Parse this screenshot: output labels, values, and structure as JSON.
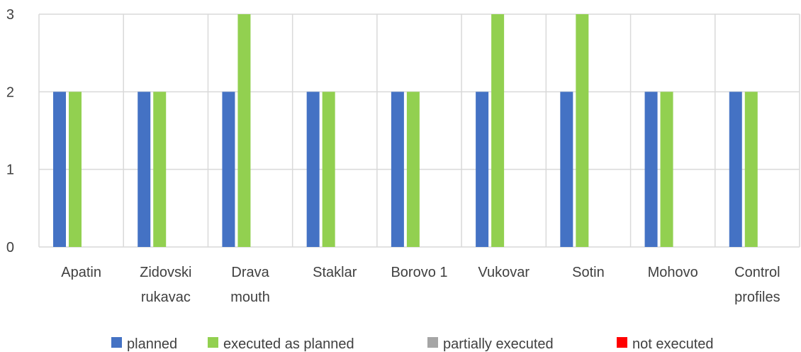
{
  "chart_data": {
    "type": "bar",
    "categories": [
      [
        "Apatin"
      ],
      [
        "Zidovski",
        "rukavac"
      ],
      [
        "Drava",
        "mouth"
      ],
      [
        "Staklar"
      ],
      [
        "Borovo 1"
      ],
      [
        "Vukovar"
      ],
      [
        "Sotin"
      ],
      [
        "Mohovo"
      ],
      [
        "Control",
        "profiles"
      ]
    ],
    "series": [
      {
        "name": "planned",
        "color": "#4472C4",
        "values": [
          2,
          2,
          2,
          2,
          2,
          2,
          2,
          2,
          2
        ]
      },
      {
        "name": "executed as planned",
        "color": "#92D050",
        "values": [
          2,
          2,
          3,
          2,
          2,
          3,
          3,
          2,
          2
        ]
      },
      {
        "name": "partially executed",
        "color": "#A5A5A5",
        "values": [
          0,
          0,
          0,
          0,
          0,
          0,
          0,
          0,
          0
        ]
      },
      {
        "name": "not executed",
        "color": "#FF0000",
        "values": [
          0,
          0,
          0,
          0,
          0,
          0,
          0,
          0,
          0
        ]
      }
    ],
    "yticks": [
      "0",
      "1",
      "2",
      "3"
    ],
    "ylim": [
      0,
      3
    ],
    "grid": true,
    "legend": "bottom"
  }
}
